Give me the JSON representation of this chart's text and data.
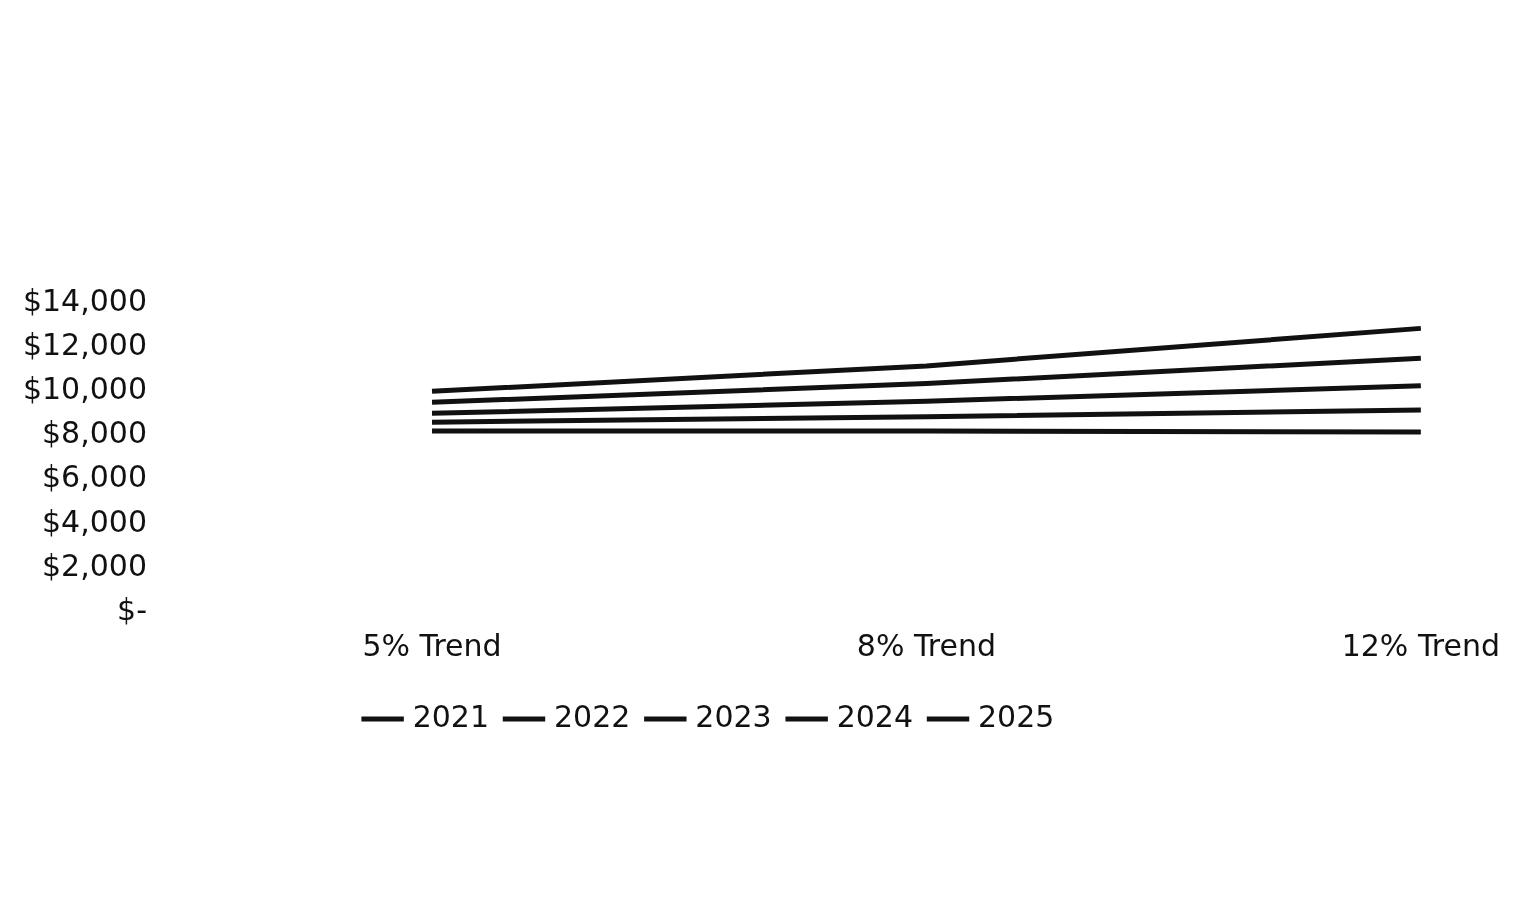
{
  "chart_data": {
    "type": "line",
    "categories": [
      "5% Trend",
      "8% Trend",
      "12% Trend"
    ],
    "series": [
      {
        "name": "2021",
        "color": "#111111",
        "values": [
          8200,
          8200,
          8150
        ]
      },
      {
        "name": "2022",
        "color": "#111111",
        "values": [
          8600,
          8850,
          9150
        ]
      },
      {
        "name": "2023",
        "color": "#111111",
        "values": [
          9000,
          9550,
          10250
        ]
      },
      {
        "name": "2024",
        "color": "#111111",
        "values": [
          9500,
          10350,
          11500
        ]
      },
      {
        "name": "2025",
        "color": "#111111",
        "values": [
          10000,
          11150,
          12850
        ]
      }
    ],
    "ylim": [
      0,
      14000
    ],
    "yticks": [
      {
        "value": 0,
        "label": "$-"
      },
      {
        "value": 2000,
        "label": "$2,000"
      },
      {
        "value": 4000,
        "label": "$4,000"
      },
      {
        "value": 6000,
        "label": "$6,000"
      },
      {
        "value": 8000,
        "label": "$8,000"
      },
      {
        "value": 10000,
        "label": "$10,000"
      },
      {
        "value": 12000,
        "label": "$12,000"
      },
      {
        "value": 14000,
        "label": "$14,000"
      }
    ],
    "legend": "bottom",
    "marker": "none",
    "line_style": "solid",
    "grid": false
  }
}
